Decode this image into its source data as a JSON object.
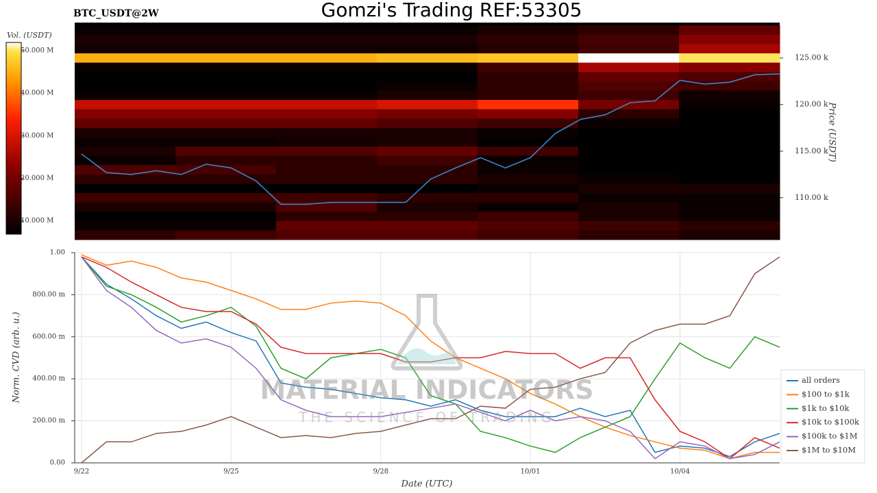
{
  "chart_data": [
    {
      "type": "heatmap",
      "title": "Gomzi's Trading REF:53305",
      "subtitle": "BTC_USDT@2W",
      "ylabel": "Price (USDT)",
      "colorbar_label": "Vol. (USDT)",
      "ylim": [
        105500,
        128800
      ],
      "yticks": [
        {
          "value": 110000,
          "label": "110.00 k"
        },
        {
          "value": 115000,
          "label": "115.00 k"
        },
        {
          "value": 120000,
          "label": "120.00 k"
        },
        {
          "value": 125000,
          "label": "125.00 k"
        }
      ],
      "vlim": [
        6900000,
        51900000
      ],
      "vticks": [
        {
          "value": 10000000,
          "label": "10.000 M"
        },
        {
          "value": 20000000,
          "label": "20.000 M"
        },
        {
          "value": 30000000,
          "label": "30.000 M"
        },
        {
          "value": 40000000,
          "label": "40.000 M"
        },
        {
          "value": 50000000,
          "label": "50.000 M"
        }
      ],
      "levels": [
        128000,
        127000,
        126000,
        125000,
        124000,
        123000,
        122000,
        121000,
        120000,
        119000,
        118000,
        117000,
        116000,
        115000,
        114000,
        113000,
        112000,
        111000,
        110000,
        109000,
        108000,
        107000,
        106000
      ],
      "values": [
        [
          8000000.0,
          8000000.0,
          8000000.0,
          8000000.0,
          10000000.0,
          12000000.0,
          18000000.0
        ],
        [
          10000000.0,
          10000000.0,
          10000000.0,
          10000000.0,
          12000000.0,
          15000000.0,
          22000000.0
        ],
        [
          9000000.0,
          9000000.0,
          9000000.0,
          9000000.0,
          11000000.0,
          14000000.0,
          25000000.0
        ],
        [
          45000000.0,
          45000000.0,
          45000000.0,
          46000000.0,
          47000000.0,
          52000000.0,
          50000000.0
        ],
        [
          8000000.0,
          8000000.0,
          8000000.0,
          8000000.0,
          14000000.0,
          25000000.0,
          22000000.0
        ],
        [
          6000000.0,
          6000000.0,
          6000000.0,
          6000000.0,
          12000000.0,
          18000000.0,
          16000000.0
        ],
        [
          7000000.0,
          7000000.0,
          7000000.0,
          8000000.0,
          12000000.0,
          16000000.0,
          14000000.0
        ],
        [
          8000000.0,
          8000000.0,
          8000000.0,
          10000000.0,
          12000000.0,
          14000000.0,
          9000000.0
        ],
        [
          28000000.0,
          28000000.0,
          28000000.0,
          30000000.0,
          35000000.0,
          20000000.0,
          8000000.0
        ],
        [
          22000000.0,
          22000000.0,
          22000000.0,
          20000000.0,
          22000000.0,
          12000000.0,
          6000000.0
        ],
        [
          18000000.0,
          18000000.0,
          18000000.0,
          16000000.0,
          14000000.0,
          8000000.0,
          5000000.0
        ],
        [
          10000000.0,
          10000000.0,
          10000000.0,
          10000000.0,
          8000000.0,
          5000000.0,
          5000000.0
        ],
        [
          8000000.0,
          8000000.0,
          9000000.0,
          10000000.0,
          6000000.0,
          4000000.0,
          4000000.0
        ],
        [
          10000000.0,
          16000000.0,
          16000000.0,
          18000000.0,
          14000000.0,
          5000000.0,
          4000000.0
        ],
        [
          8000000.0,
          12000000.0,
          12000000.0,
          14000000.0,
          8000000.0,
          4000000.0,
          4000000.0
        ],
        [
          16000000.0,
          15000000.0,
          12000000.0,
          12000000.0,
          8000000.0,
          4000000.0,
          3000000.0
        ],
        [
          12000000.0,
          12000000.0,
          12000000.0,
          12000000.0,
          10000000.0,
          8000000.0,
          4000000.0
        ],
        [
          6000000.0,
          6000000.0,
          6000000.0,
          6000000.0,
          8000000.0,
          10000000.0,
          10000000.0
        ],
        [
          14000000.0,
          14000000.0,
          14000000.0,
          12000000.0,
          12000000.0,
          8000000.0,
          8000000.0
        ],
        [
          10000000.0,
          10000000.0,
          16000000.0,
          10000000.0,
          8000000.0,
          10000000.0,
          8000000.0
        ],
        [
          6000000.0,
          6000000.0,
          12000000.0,
          12000000.0,
          14000000.0,
          10000000.0,
          8000000.0
        ],
        [
          8000000.0,
          8000000.0,
          18000000.0,
          18000000.0,
          16000000.0,
          14000000.0,
          12000000.0
        ],
        [
          12000000.0,
          14000000.0,
          16000000.0,
          16000000.0,
          14000000.0,
          12000000.0,
          10000000.0
        ]
      ],
      "price": {
        "color": "#3a86c8",
        "values": [
          114700,
          112700,
          112500,
          112900,
          112500,
          113600,
          113200,
          111800,
          109300,
          109300,
          109500,
          109500,
          109500,
          109500,
          112000,
          113200,
          114300,
          113200,
          114300,
          116900,
          118400,
          118900,
          120200,
          120400,
          122600,
          122200,
          122400,
          123200,
          123300
        ]
      }
    },
    {
      "type": "line",
      "xlabel": "Date (UTC)",
      "ylabel": "Norm. CVD (arb. u.)",
      "grid": true,
      "legend": "lower right",
      "x": [
        "9/22",
        null,
        null,
        null,
        null,
        null,
        "9/25",
        null,
        null,
        null,
        null,
        null,
        "9/28",
        null,
        null,
        null,
        null,
        null,
        "10/01",
        null,
        null,
        null,
        null,
        null,
        "10/04",
        null,
        null,
        null,
        null
      ],
      "ylim": [
        0,
        1
      ],
      "yticks": [
        {
          "value": 0,
          "label": "0.00"
        },
        {
          "value": 0.2,
          "label": "200.00 m"
        },
        {
          "value": 0.4,
          "label": "400.00 m"
        },
        {
          "value": 0.6,
          "label": "600.00 m"
        },
        {
          "value": 0.8,
          "label": "800.00 m"
        },
        {
          "value": 1,
          "label": "1.00"
        }
      ],
      "series": [
        {
          "name": "all orders",
          "color": "#1f77b4",
          "values": [
            0.98,
            0.85,
            0.78,
            0.7,
            0.64,
            0.67,
            0.62,
            0.58,
            0.38,
            0.36,
            0.35,
            0.33,
            0.31,
            0.3,
            0.27,
            0.3,
            0.25,
            0.22,
            0.22,
            0.22,
            0.26,
            0.22,
            0.25,
            0.05,
            0.08,
            0.07,
            0.03,
            0.1,
            0.14
          ]
        },
        {
          "name": "$100 to $1k",
          "color": "#ff7f0e",
          "values": [
            0.99,
            0.94,
            0.96,
            0.93,
            0.88,
            0.86,
            0.82,
            0.78,
            0.73,
            0.73,
            0.76,
            0.77,
            0.76,
            0.7,
            0.58,
            0.5,
            0.45,
            0.4,
            0.33,
            0.28,
            0.22,
            0.17,
            0.13,
            0.1,
            0.07,
            0.06,
            0.02,
            0.05,
            0.05
          ]
        },
        {
          "name": "$1k to $10k",
          "color": "#2ca02c",
          "values": [
            0.98,
            0.84,
            0.8,
            0.74,
            0.67,
            0.7,
            0.74,
            0.65,
            0.45,
            0.4,
            0.5,
            0.52,
            0.54,
            0.5,
            0.32,
            0.28,
            0.15,
            0.12,
            0.08,
            0.05,
            0.12,
            0.17,
            0.22,
            0.4,
            0.57,
            0.5,
            0.45,
            0.6,
            0.55
          ]
        },
        {
          "name": "$10k to $100k",
          "color": "#d62728",
          "values": [
            0.98,
            0.93,
            0.86,
            0.8,
            0.74,
            0.72,
            0.72,
            0.66,
            0.55,
            0.52,
            0.52,
            0.52,
            0.52,
            0.48,
            0.48,
            0.5,
            0.5,
            0.53,
            0.52,
            0.52,
            0.45,
            0.5,
            0.5,
            0.3,
            0.15,
            0.1,
            0.02,
            0.12,
            0.07
          ]
        },
        {
          "name": "$100k to $1M",
          "color": "#9467bd",
          "values": [
            0.98,
            0.82,
            0.74,
            0.63,
            0.57,
            0.59,
            0.55,
            0.45,
            0.3,
            0.25,
            0.22,
            0.22,
            0.22,
            0.24,
            0.26,
            0.28,
            0.24,
            0.2,
            0.25,
            0.2,
            0.22,
            0.2,
            0.15,
            0.02,
            0.1,
            0.08,
            0.02,
            0.04,
            0.1
          ]
        },
        {
          "name": "$1M to $10M",
          "color": "#8c564b",
          "values": [
            0.0,
            0.1,
            0.1,
            0.14,
            0.15,
            0.18,
            0.22,
            0.17,
            0.12,
            0.13,
            0.12,
            0.14,
            0.15,
            0.18,
            0.21,
            0.21,
            0.27,
            0.26,
            0.35,
            0.36,
            0.4,
            0.43,
            0.57,
            0.63,
            0.66,
            0.66,
            0.7,
            0.9,
            0.98
          ]
        }
      ]
    }
  ],
  "watermark": {
    "brand": "MATERIAL INDICATORS",
    "tagline": "THE SCIENCE OF TRADING"
  }
}
